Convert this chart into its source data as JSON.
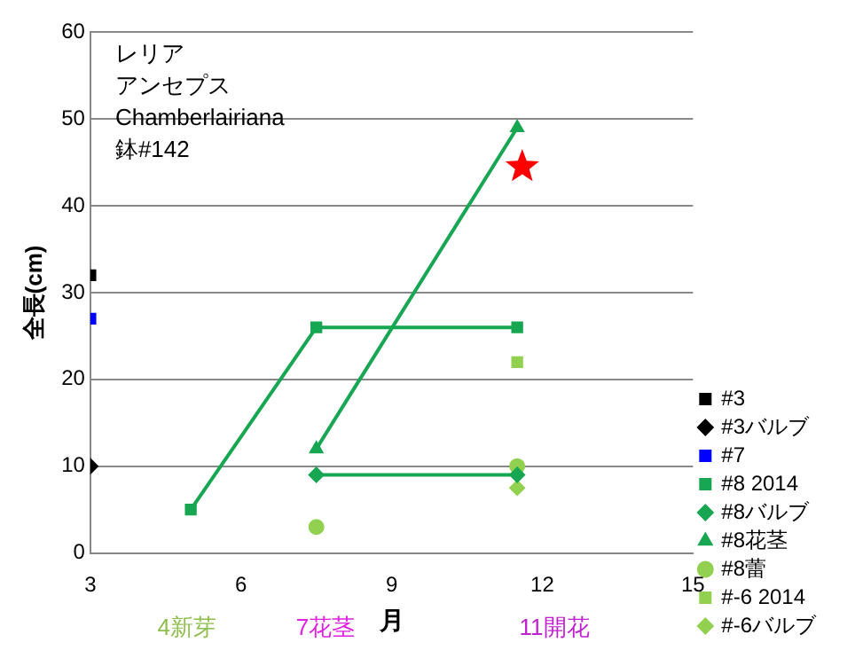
{
  "chart_data": {
    "type": "line",
    "xlabel": "月",
    "ylabel": "全長(cm)",
    "xlim": [
      3,
      15
    ],
    "xticks": [
      3,
      6,
      9,
      12,
      15
    ],
    "ylim": [
      0,
      60
    ],
    "yticks": [
      0,
      10,
      20,
      30,
      40,
      50,
      60
    ],
    "grid": "y",
    "legend": "right",
    "annotations": [
      "レリア",
      "アンセプス",
      "Chamberlairiana",
      "鉢#142",
      "4新芽",
      "7花茎",
      "11開花"
    ],
    "series": [
      {
        "name": "#3",
        "color": "#000000",
        "marker": "square",
        "x": [
          3
        ],
        "values": [
          32
        ]
      },
      {
        "name": "#3バルブ",
        "color": "#000000",
        "marker": "diamond",
        "x": [
          3
        ],
        "values": [
          10
        ]
      },
      {
        "name": "#7",
        "color": "#0000ff",
        "marker": "square",
        "x": [
          3
        ],
        "values": [
          27
        ]
      },
      {
        "name": "#8 2014",
        "color": "#17a651",
        "marker": "square",
        "x": [
          5,
          7.5,
          11.5
        ],
        "values": [
          5,
          26,
          26
        ]
      },
      {
        "name": "#8バルブ",
        "color": "#17a651",
        "marker": "diamond",
        "x": [
          7.5,
          11.5
        ],
        "values": [
          9,
          9
        ]
      },
      {
        "name": "#8花茎",
        "color": "#17a651",
        "marker": "triangle",
        "x": [
          7.5,
          11.5
        ],
        "values": [
          12,
          49
        ]
      },
      {
        "name": "#8蕾",
        "type": "scatter",
        "color": "#92d050",
        "marker": "circle",
        "x": [
          7.5,
          11.5
        ],
        "values": [
          3,
          10
        ]
      },
      {
        "name": "#-6 2014",
        "type": "scatter",
        "color": "#92d050",
        "marker": "square",
        "x": [
          11.5
        ],
        "values": [
          22
        ]
      },
      {
        "name": "#-6バルブ",
        "type": "scatter",
        "color": "#92d050",
        "marker": "diamond",
        "x": [
          11.5
        ],
        "values": [
          7.5
        ]
      },
      {
        "type": "scatter",
        "color": "#ff0000",
        "marker": "star",
        "x": [
          11.6
        ],
        "values": [
          44.5
        ]
      }
    ]
  }
}
